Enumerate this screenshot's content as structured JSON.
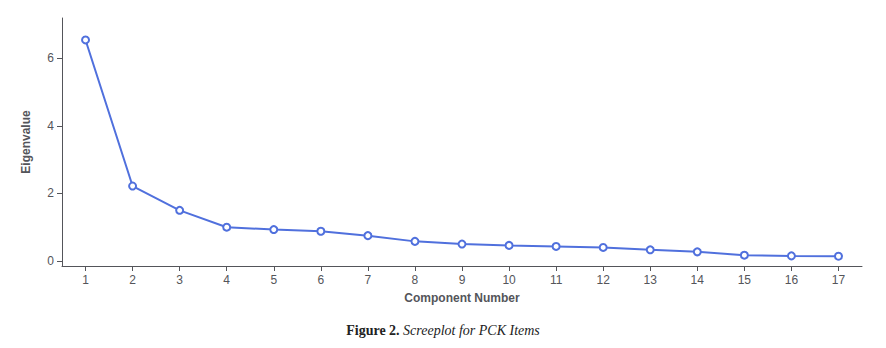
{
  "chart_data": {
    "type": "line",
    "title": "Figure 2.",
    "subtitle": " Screeplot for PCK Items",
    "x": [
      1,
      2,
      3,
      4,
      5,
      6,
      7,
      8,
      9,
      10,
      11,
      12,
      13,
      14,
      15,
      16,
      17
    ],
    "values": [
      6.55,
      2.22,
      1.5,
      1.0,
      0.93,
      0.88,
      0.75,
      0.58,
      0.5,
      0.46,
      0.43,
      0.4,
      0.33,
      0.27,
      0.17,
      0.15,
      0.14
    ],
    "xlabel": "Component Number",
    "ylabel": "Eigenvalue",
    "xlim": [
      0.5,
      17.5
    ],
    "xticks": [
      1,
      2,
      3,
      4,
      5,
      6,
      7,
      8,
      9,
      10,
      11,
      12,
      13,
      14,
      15,
      16,
      17
    ],
    "ylim": [
      -0.15,
      7.2
    ],
    "yticks": [
      0,
      2,
      4,
      6
    ],
    "grid": false,
    "marker": "circle"
  }
}
